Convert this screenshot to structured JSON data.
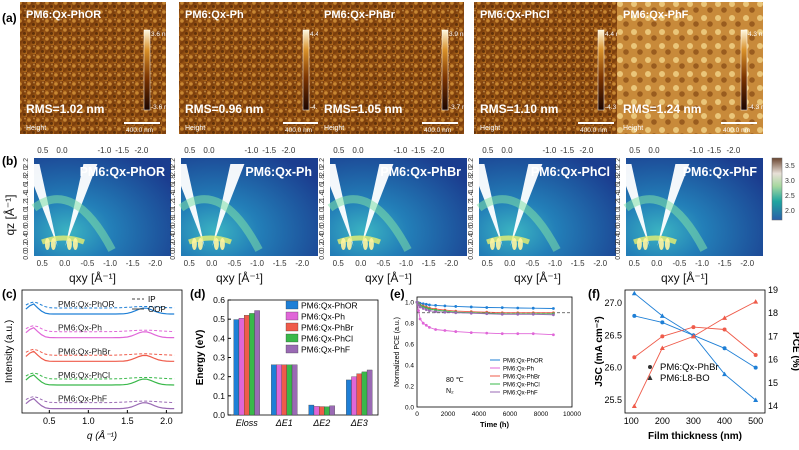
{
  "panel_labels": [
    "(a)",
    "(b)",
    "(c)",
    "(d)",
    "(e)",
    "(f)"
  ],
  "afm": {
    "images": [
      {
        "name": "PM6:Qx-PhOR",
        "rms": "RMS=1.02 nm",
        "cbar_max": "3.6 nm",
        "cbar_min": "-3.6 nm"
      },
      {
        "name": "PM6:Qx-Ph",
        "rms": "RMS=0.96 nm",
        "cbar_max": "4.4 nm",
        "cbar_min": "-4.6 nm"
      },
      {
        "name": "PM6:Qx-PhBr",
        "rms": "RMS=1.05 nm",
        "cbar_max": "3.9 nm",
        "cbar_min": "-3.7 nm"
      },
      {
        "name": "PM6:Qx-PhCl",
        "rms": "RMS=1.10 nm",
        "cbar_max": "4.4 nm",
        "cbar_min": "-4.3 nm"
      },
      {
        "name": "PM6:Qx-PhF",
        "rms": "RMS=1.24 nm",
        "cbar_max": "4.3 nm",
        "cbar_min": "-4.3 nm"
      }
    ],
    "height_label": "Height",
    "scale_bar": "400.0 nm"
  },
  "giwaxs": {
    "samples": [
      "PM6:Qx-PhOR",
      "PM6:Qx-Ph",
      "PM6:Qx-PhBr",
      "PM6:Qx-PhCl",
      "PM6:Qx-PhF"
    ],
    "top_ticks": [
      "0.5",
      "0.0",
      "-1.0",
      "-1.5",
      "-2.0"
    ],
    "qz_ticks": [
      "0.0",
      "0.2",
      "0.4",
      "0.6",
      "0.8",
      "1.0",
      "1.2",
      "1.4",
      "1.6",
      "1.8",
      "2.0",
      "2.2"
    ],
    "qx_ticks": [
      "0.5",
      "0.0",
      "-0.5",
      "-1.0",
      "-1.5",
      "-2.0"
    ],
    "ylabel": "qz [Å⁻¹]",
    "xlabel": "qxy [Å⁻¹]",
    "colorbar_ticks": [
      "3.5",
      "3.0",
      "2.5",
      "2.0"
    ]
  },
  "colors": {
    "PhOR": "#1e7fd6",
    "Ph": "#e066d8",
    "PhBr": "#ef5b4a",
    "PhCl": "#39b84a",
    "PhF": "#9a6ab4",
    "ref_line": "#444444"
  },
  "chart_data": [
    {
      "type": "line",
      "panel": "(c)",
      "xlabel": "q (Å⁻¹)",
      "ylabel": "Intensity (a.u.)",
      "xlim": [
        0.15,
        2.2
      ],
      "xticks": [
        "0.5",
        "1.0",
        "1.5",
        "2.0"
      ],
      "legend": [
        "IP",
        "OOP"
      ],
      "series": [
        {
          "name": "PM6:Qx-PhOR",
          "offset": 4
        },
        {
          "name": "PM6:Qx-Ph",
          "offset": 3
        },
        {
          "name": "PM6:Qx-PhBr",
          "offset": 2
        },
        {
          "name": "PM6:Qx-PhCl",
          "offset": 1
        },
        {
          "name": "PM6:Qx-PhF",
          "offset": 0
        }
      ]
    },
    {
      "type": "bar",
      "panel": "(d)",
      "ylabel": "Energy (eV)",
      "ylim": [
        0,
        0.6
      ],
      "yticks": [
        "0.0",
        "0.1",
        "0.2",
        "0.3",
        "0.4",
        "0.5",
        "0.6"
      ],
      "categories": [
        "Eloss",
        "ΔE1",
        "ΔE2",
        "ΔE3"
      ],
      "series": [
        {
          "name": "PM6:Qx-PhOR",
          "values": [
            0.498,
            0.262,
            0.052,
            0.183
          ]
        },
        {
          "name": "PM6:Qx-Ph",
          "values": [
            0.505,
            0.262,
            0.045,
            0.2
          ]
        },
        {
          "name": "PM6:Qx-PhBr",
          "values": [
            0.52,
            0.262,
            0.044,
            0.215
          ]
        },
        {
          "name": "PM6:Qx-PhCl",
          "values": [
            0.53,
            0.262,
            0.043,
            0.225
          ]
        },
        {
          "name": "PM6:Qx-PhF",
          "values": [
            0.545,
            0.262,
            0.048,
            0.235
          ]
        }
      ]
    },
    {
      "type": "line",
      "panel": "(e)",
      "xlabel": "Time (h)",
      "ylabel": "Normalized PCE (a.u.)",
      "xlim": [
        0,
        10000
      ],
      "ylim": [
        0,
        1.05
      ],
      "xticks": [
        "0",
        "2000",
        "4000",
        "6000",
        "8000",
        "10000"
      ],
      "yticks": [
        "0.0",
        "0.2",
        "0.4",
        "0.6",
        "0.8",
        "1.0"
      ],
      "annotation": [
        "80 ℃",
        "N₂"
      ],
      "x": [
        0,
        100,
        200,
        400,
        600,
        800,
        1200,
        1800,
        2500,
        3500,
        4500,
        5500,
        6500,
        7500,
        8800
      ],
      "series": [
        {
          "name": "PM6:Qx-PhOR",
          "values": [
            1.0,
            0.995,
            0.99,
            0.985,
            0.98,
            0.975,
            0.97,
            0.965,
            0.96,
            0.955,
            0.95,
            0.948,
            0.945,
            0.943,
            0.94
          ]
        },
        {
          "name": "PM6:Qx-Ph",
          "values": [
            1.0,
            0.92,
            0.84,
            0.8,
            0.78,
            0.76,
            0.74,
            0.73,
            0.72,
            0.71,
            0.705,
            0.7,
            0.7,
            0.7,
            0.69
          ]
        },
        {
          "name": "PM6:Qx-PhBr",
          "values": [
            1.0,
            0.99,
            0.975,
            0.965,
            0.955,
            0.945,
            0.935,
            0.925,
            0.915,
            0.91,
            0.905,
            0.9,
            0.9,
            0.9,
            0.9
          ]
        },
        {
          "name": "PM6:Qx-PhCl",
          "values": [
            1.0,
            0.985,
            0.97,
            0.955,
            0.945,
            0.935,
            0.925,
            0.915,
            0.905,
            0.9,
            0.895,
            0.89,
            0.89,
            0.89,
            0.89
          ]
        },
        {
          "name": "PM6:Qx-PhF",
          "values": [
            1.0,
            0.975,
            0.955,
            0.94,
            0.93,
            0.92,
            0.91,
            0.905,
            0.9,
            0.895,
            0.89,
            0.885,
            0.885,
            0.885,
            0.88
          ]
        }
      ],
      "ref_line_y": 0.9
    },
    {
      "type": "line",
      "panel": "(f)",
      "xlabel": "Film thickness (nm)",
      "ylabel": "JSC (mA cm⁻²)",
      "y2label": "PCE (%)",
      "xlim": [
        80,
        530
      ],
      "ylim": [
        25.3,
        27.2
      ],
      "y2lim": [
        13.7,
        19.0
      ],
      "xticks": [
        "100",
        "200",
        "300",
        "400",
        "500"
      ],
      "yticks": [
        "25.5",
        "26.0",
        "26.5",
        "27.0"
      ],
      "y2ticks": [
        "14",
        "15",
        "16",
        "17",
        "18",
        "19"
      ],
      "x": [
        110,
        200,
        300,
        400,
        500
      ],
      "series": [
        {
          "name": "PM6:Qx-PhBr",
          "metric": "JSC",
          "values": [
            26.8,
            26.7,
            26.5,
            26.3,
            26.0
          ],
          "color": "#1e7fd6",
          "marker": "circle"
        },
        {
          "name": "PM6:Qx-PhBr",
          "metric": "PCE",
          "values": [
            16.1,
            17.0,
            17.4,
            17.3,
            16.2
          ],
          "color": "#ef5b4a",
          "marker": "circle"
        },
        {
          "name": "PM6:L8-BO",
          "metric": "JSC",
          "values": [
            27.15,
            26.8,
            26.5,
            25.9,
            25.5
          ],
          "color": "#1e7fd6",
          "marker": "triangle"
        },
        {
          "name": "PM6:L8-BO",
          "metric": "PCE",
          "values": [
            14.0,
            16.5,
            17.0,
            17.8,
            18.5
          ],
          "color": "#ef5b4a",
          "marker": "triangle"
        }
      ],
      "legend": [
        "PM6:Qx-PhBr",
        "PM6:L8-BO"
      ]
    }
  ]
}
